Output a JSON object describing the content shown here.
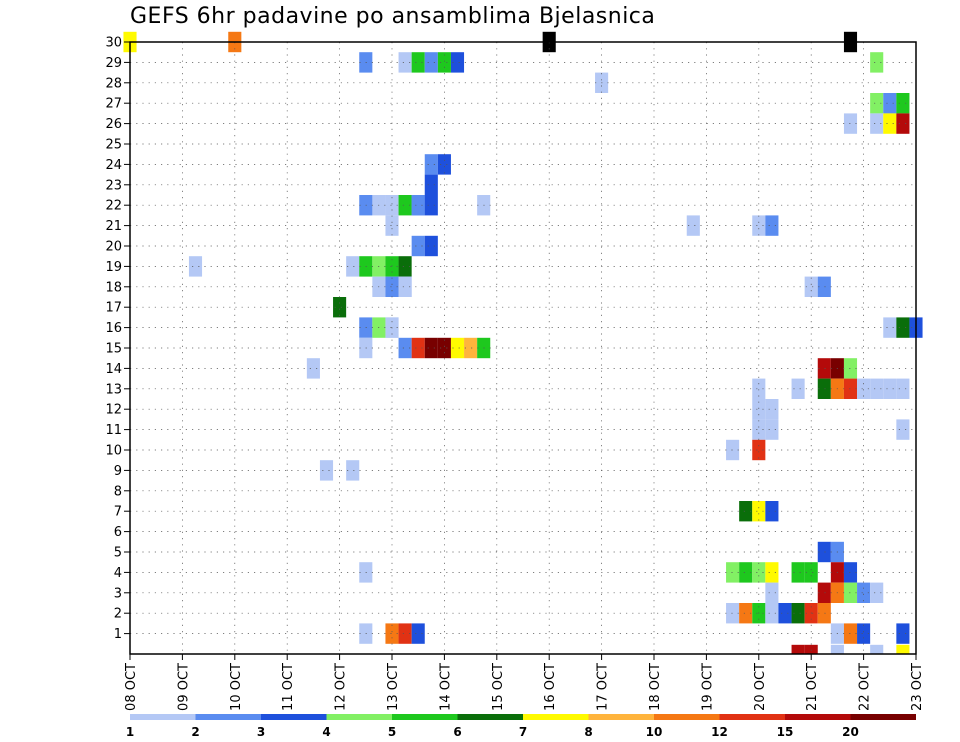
{
  "chart_data": {
    "type": "heatmap",
    "title": "GEFS 6hr padavine po ansamblima Bjelasnica",
    "x_tick_labels": [
      "08 OCT",
      "09 OCT",
      "10 OCT",
      "11 OCT",
      "12 OCT",
      "13 OCT",
      "14 OCT",
      "15 OCT",
      "16 OCT",
      "17 OCT",
      "18 OCT",
      "19 OCT",
      "20 OCT",
      "21 OCT",
      "22 OCT",
      "23 OCT"
    ],
    "y_tick_labels": [
      "1",
      "2",
      "3",
      "4",
      "5",
      "6",
      "7",
      "8",
      "9",
      "10",
      "11",
      "12",
      "13",
      "14",
      "15",
      "16",
      "17",
      "18",
      "19",
      "20",
      "21",
      "22",
      "23",
      "24",
      "25",
      "26",
      "27",
      "28",
      "29",
      "30"
    ],
    "x_steps_per_day": 4,
    "x_range_steps": [
      0,
      60
    ],
    "y_range": [
      0,
      30
    ],
    "grid": true,
    "legend": {
      "placement": "bottom",
      "levels": [
        1,
        2,
        3,
        4,
        5,
        6,
        7,
        8,
        10,
        12,
        15,
        20
      ],
      "colors": [
        "#b4c8f5",
        "#5a8cf0",
        "#1e50dc",
        "#82f064",
        "#1ec81e",
        "#0a6e0a",
        "#fffa00",
        "#ffb43c",
        "#f57814",
        "#e13214",
        "#b40a0a",
        "#780000"
      ]
    },
    "cells": [
      [
        30,
        0,
        7
      ],
      [
        30,
        8,
        9
      ],
      [
        30,
        32,
        33
      ],
      [
        30,
        55,
        56
      ],
      [
        29,
        18,
        2
      ],
      [
        29,
        21,
        1
      ],
      [
        29,
        22,
        5
      ],
      [
        29,
        23,
        2
      ],
      [
        29,
        24,
        5
      ],
      [
        29,
        25,
        3
      ],
      [
        29,
        57,
        4
      ],
      [
        28,
        36,
        1
      ],
      [
        27,
        57,
        4
      ],
      [
        27,
        58,
        2
      ],
      [
        27,
        59,
        5
      ],
      [
        26,
        55,
        1
      ],
      [
        26,
        57,
        1
      ],
      [
        26,
        58,
        7
      ],
      [
        26,
        59,
        11
      ],
      [
        24,
        23,
        2
      ],
      [
        24,
        24,
        3
      ],
      [
        23,
        23,
        3
      ],
      [
        22,
        22,
        2
      ],
      [
        22,
        19,
        1
      ],
      [
        22,
        18,
        2
      ],
      [
        22,
        20,
        1
      ],
      [
        22,
        21,
        5
      ],
      [
        22,
        22,
        2
      ],
      [
        22,
        23,
        3
      ],
      [
        22,
        27,
        1
      ],
      [
        21,
        20,
        1
      ],
      [
        21,
        43,
        1
      ],
      [
        21,
        48,
        1
      ],
      [
        21,
        49,
        2
      ],
      [
        20,
        22,
        2
      ],
      [
        20,
        23,
        3
      ],
      [
        19,
        5,
        1
      ],
      [
        19,
        17,
        1
      ],
      [
        19,
        18,
        5
      ],
      [
        19,
        19,
        4
      ],
      [
        19,
        20,
        5
      ],
      [
        19,
        21,
        6
      ],
      [
        18,
        21,
        1
      ],
      [
        18,
        19,
        1
      ],
      [
        18,
        20,
        2
      ],
      [
        18,
        21,
        1
      ],
      [
        18,
        52,
        1
      ],
      [
        18,
        53,
        2
      ],
      [
        17,
        16,
        6
      ],
      [
        16,
        20,
        1
      ],
      [
        16,
        18,
        2
      ],
      [
        16,
        19,
        4
      ],
      [
        16,
        20,
        1
      ],
      [
        16,
        58,
        1
      ],
      [
        16,
        59,
        6
      ],
      [
        16,
        60,
        3
      ],
      [
        15,
        18,
        1
      ],
      [
        15,
        21,
        2
      ],
      [
        15,
        22,
        10
      ],
      [
        15,
        23,
        12
      ],
      [
        15,
        24,
        12
      ],
      [
        15,
        25,
        7
      ],
      [
        15,
        26,
        8
      ],
      [
        15,
        27,
        5
      ],
      [
        14,
        14,
        1
      ],
      [
        14,
        53,
        11
      ],
      [
        14,
        54,
        12
      ],
      [
        14,
        55,
        4
      ],
      [
        13,
        48,
        1
      ],
      [
        13,
        51,
        1
      ],
      [
        13,
        53,
        6
      ],
      [
        13,
        54,
        9
      ],
      [
        13,
        55,
        10
      ],
      [
        13,
        56,
        1
      ],
      [
        13,
        57,
        1
      ],
      [
        13,
        58,
        1
      ],
      [
        13,
        59,
        1
      ],
      [
        12,
        48,
        1
      ],
      [
        12,
        49,
        1
      ],
      [
        11,
        48,
        1
      ],
      [
        11,
        49,
        1
      ],
      [
        11,
        59,
        1
      ],
      [
        10,
        46,
        1
      ],
      [
        10,
        48,
        10
      ],
      [
        9,
        15,
        1
      ],
      [
        9,
        17,
        1
      ],
      [
        7,
        47,
        6
      ],
      [
        7,
        48,
        7
      ],
      [
        7,
        49,
        3
      ],
      [
        5,
        53,
        3
      ],
      [
        5,
        54,
        2
      ],
      [
        4,
        18,
        1
      ],
      [
        4,
        46,
        4
      ],
      [
        4,
        47,
        5
      ],
      [
        4,
        48,
        4
      ],
      [
        4,
        49,
        7
      ],
      [
        4,
        51,
        5
      ],
      [
        4,
        52,
        5
      ],
      [
        4,
        54,
        11
      ],
      [
        4,
        55,
        3
      ],
      [
        3,
        49,
        1
      ],
      [
        3,
        53,
        11
      ],
      [
        3,
        54,
        9
      ],
      [
        3,
        55,
        4
      ],
      [
        3,
        56,
        2
      ],
      [
        3,
        57,
        1
      ],
      [
        2,
        46,
        1
      ],
      [
        2,
        47,
        9
      ],
      [
        2,
        48,
        5
      ],
      [
        2,
        49,
        1
      ],
      [
        2,
        50,
        3
      ],
      [
        2,
        51,
        6
      ],
      [
        2,
        52,
        10
      ],
      [
        2,
        53,
        9
      ],
      [
        1,
        18,
        1
      ],
      [
        1,
        20,
        9
      ],
      [
        1,
        21,
        10
      ],
      [
        1,
        22,
        3
      ],
      [
        1,
        54,
        1
      ],
      [
        1,
        55,
        9
      ],
      [
        1,
        56,
        3
      ],
      [
        1,
        59,
        3
      ],
      [
        0,
        51,
        11
      ],
      [
        0,
        52,
        11
      ],
      [
        0,
        54,
        1
      ],
      [
        0,
        57,
        1
      ],
      [
        0,
        59,
        7
      ]
    ]
  }
}
